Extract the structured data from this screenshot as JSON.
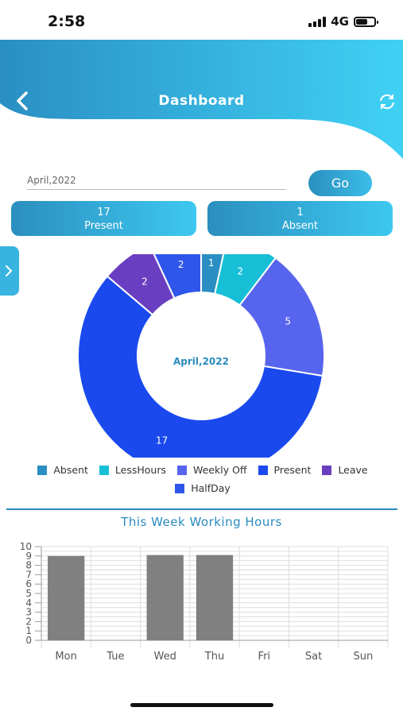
{
  "status_bar": {
    "time": "2:58",
    "network": "4G"
  },
  "header": {
    "title": "Dashboard",
    "back_icon": "chevron-left-icon",
    "refresh_icon": "refresh-icon"
  },
  "filter": {
    "month_value": "April,2022",
    "go_label": "Go"
  },
  "summary": [
    {
      "count": "17",
      "label": "Present"
    },
    {
      "count": "1",
      "label": "Absent"
    }
  ],
  "colors": {
    "header_gradient_start": "#2a8fc3",
    "header_gradient_end": "#40d1f5",
    "Absent": "#2a8ec3",
    "LessHours": "#17bfd6",
    "Weekly Off": "#5764ee",
    "Present": "#1a49ee",
    "Leave": "#6a3ec0",
    "HalfDay": "#2f56ea",
    "bars": "#808080"
  },
  "chart_data": [
    {
      "type": "pie",
      "center_label": "April,2022",
      "slices": [
        {
          "label": "Absent",
          "value": 1
        },
        {
          "label": "LessHours",
          "value": 2
        },
        {
          "label": "Weekly Off",
          "value": 5
        },
        {
          "label": "Present",
          "value": 17
        },
        {
          "label": "Leave",
          "value": 2
        },
        {
          "label": "HalfDay",
          "value": 2
        }
      ],
      "legend": [
        "Absent",
        "LessHours",
        "Weekly Off",
        "Present",
        "Leave",
        "HalfDay"
      ],
      "legend_position": "bottom"
    },
    {
      "type": "bar",
      "title": "This Week Working Hours",
      "categories": [
        "Mon",
        "Tue",
        "Wed",
        "Thu",
        "Fri",
        "Sat",
        "Sun"
      ],
      "values": [
        9,
        0,
        9.1,
        9.1,
        0,
        0,
        0
      ],
      "ylim": [
        0,
        10
      ],
      "yticks": [
        "0",
        "1",
        "2",
        "3",
        "4",
        "5",
        "6",
        "7",
        "8",
        "9",
        "10"
      ],
      "grid": true
    }
  ]
}
